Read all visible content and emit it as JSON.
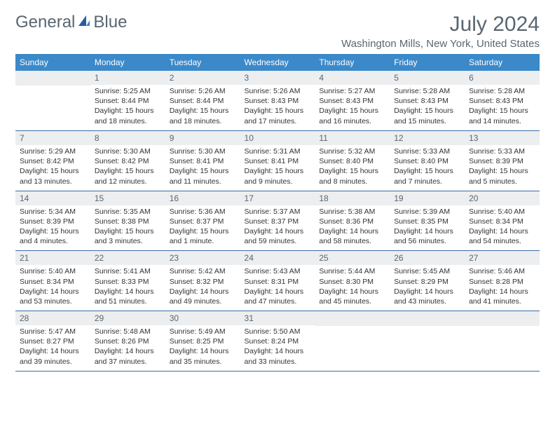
{
  "logo": {
    "general": "General",
    "blue": "Blue"
  },
  "title": "July 2024",
  "location": "Washington Mills, New York, United States",
  "colors": {
    "header_bg": "#3b89c9",
    "header_text": "#ffffff",
    "daynum_bg": "#eceef0",
    "text_muted": "#5a6670",
    "row_border": "#3b6ea5",
    "logo_accent": "#2a5d9e"
  },
  "dayNames": [
    "Sunday",
    "Monday",
    "Tuesday",
    "Wednesday",
    "Thursday",
    "Friday",
    "Saturday"
  ],
  "weeks": [
    [
      null,
      {
        "n": "1",
        "sr": "5:25 AM",
        "ss": "8:44 PM",
        "dl": "15 hours and 18 minutes."
      },
      {
        "n": "2",
        "sr": "5:26 AM",
        "ss": "8:44 PM",
        "dl": "15 hours and 18 minutes."
      },
      {
        "n": "3",
        "sr": "5:26 AM",
        "ss": "8:43 PM",
        "dl": "15 hours and 17 minutes."
      },
      {
        "n": "4",
        "sr": "5:27 AM",
        "ss": "8:43 PM",
        "dl": "15 hours and 16 minutes."
      },
      {
        "n": "5",
        "sr": "5:28 AM",
        "ss": "8:43 PM",
        "dl": "15 hours and 15 minutes."
      },
      {
        "n": "6",
        "sr": "5:28 AM",
        "ss": "8:43 PM",
        "dl": "15 hours and 14 minutes."
      }
    ],
    [
      {
        "n": "7",
        "sr": "5:29 AM",
        "ss": "8:42 PM",
        "dl": "15 hours and 13 minutes."
      },
      {
        "n": "8",
        "sr": "5:30 AM",
        "ss": "8:42 PM",
        "dl": "15 hours and 12 minutes."
      },
      {
        "n": "9",
        "sr": "5:30 AM",
        "ss": "8:41 PM",
        "dl": "15 hours and 11 minutes."
      },
      {
        "n": "10",
        "sr": "5:31 AM",
        "ss": "8:41 PM",
        "dl": "15 hours and 9 minutes."
      },
      {
        "n": "11",
        "sr": "5:32 AM",
        "ss": "8:40 PM",
        "dl": "15 hours and 8 minutes."
      },
      {
        "n": "12",
        "sr": "5:33 AM",
        "ss": "8:40 PM",
        "dl": "15 hours and 7 minutes."
      },
      {
        "n": "13",
        "sr": "5:33 AM",
        "ss": "8:39 PM",
        "dl": "15 hours and 5 minutes."
      }
    ],
    [
      {
        "n": "14",
        "sr": "5:34 AM",
        "ss": "8:39 PM",
        "dl": "15 hours and 4 minutes."
      },
      {
        "n": "15",
        "sr": "5:35 AM",
        "ss": "8:38 PM",
        "dl": "15 hours and 3 minutes."
      },
      {
        "n": "16",
        "sr": "5:36 AM",
        "ss": "8:37 PM",
        "dl": "15 hours and 1 minute."
      },
      {
        "n": "17",
        "sr": "5:37 AM",
        "ss": "8:37 PM",
        "dl": "14 hours and 59 minutes."
      },
      {
        "n": "18",
        "sr": "5:38 AM",
        "ss": "8:36 PM",
        "dl": "14 hours and 58 minutes."
      },
      {
        "n": "19",
        "sr": "5:39 AM",
        "ss": "8:35 PM",
        "dl": "14 hours and 56 minutes."
      },
      {
        "n": "20",
        "sr": "5:40 AM",
        "ss": "8:34 PM",
        "dl": "14 hours and 54 minutes."
      }
    ],
    [
      {
        "n": "21",
        "sr": "5:40 AM",
        "ss": "8:34 PM",
        "dl": "14 hours and 53 minutes."
      },
      {
        "n": "22",
        "sr": "5:41 AM",
        "ss": "8:33 PM",
        "dl": "14 hours and 51 minutes."
      },
      {
        "n": "23",
        "sr": "5:42 AM",
        "ss": "8:32 PM",
        "dl": "14 hours and 49 minutes."
      },
      {
        "n": "24",
        "sr": "5:43 AM",
        "ss": "8:31 PM",
        "dl": "14 hours and 47 minutes."
      },
      {
        "n": "25",
        "sr": "5:44 AM",
        "ss": "8:30 PM",
        "dl": "14 hours and 45 minutes."
      },
      {
        "n": "26",
        "sr": "5:45 AM",
        "ss": "8:29 PM",
        "dl": "14 hours and 43 minutes."
      },
      {
        "n": "27",
        "sr": "5:46 AM",
        "ss": "8:28 PM",
        "dl": "14 hours and 41 minutes."
      }
    ],
    [
      {
        "n": "28",
        "sr": "5:47 AM",
        "ss": "8:27 PM",
        "dl": "14 hours and 39 minutes."
      },
      {
        "n": "29",
        "sr": "5:48 AM",
        "ss": "8:26 PM",
        "dl": "14 hours and 37 minutes."
      },
      {
        "n": "30",
        "sr": "5:49 AM",
        "ss": "8:25 PM",
        "dl": "14 hours and 35 minutes."
      },
      {
        "n": "31",
        "sr": "5:50 AM",
        "ss": "8:24 PM",
        "dl": "14 hours and 33 minutes."
      },
      null,
      null,
      null
    ]
  ],
  "labels": {
    "sunrise": "Sunrise: ",
    "sunset": "Sunset: ",
    "daylight": "Daylight: "
  }
}
